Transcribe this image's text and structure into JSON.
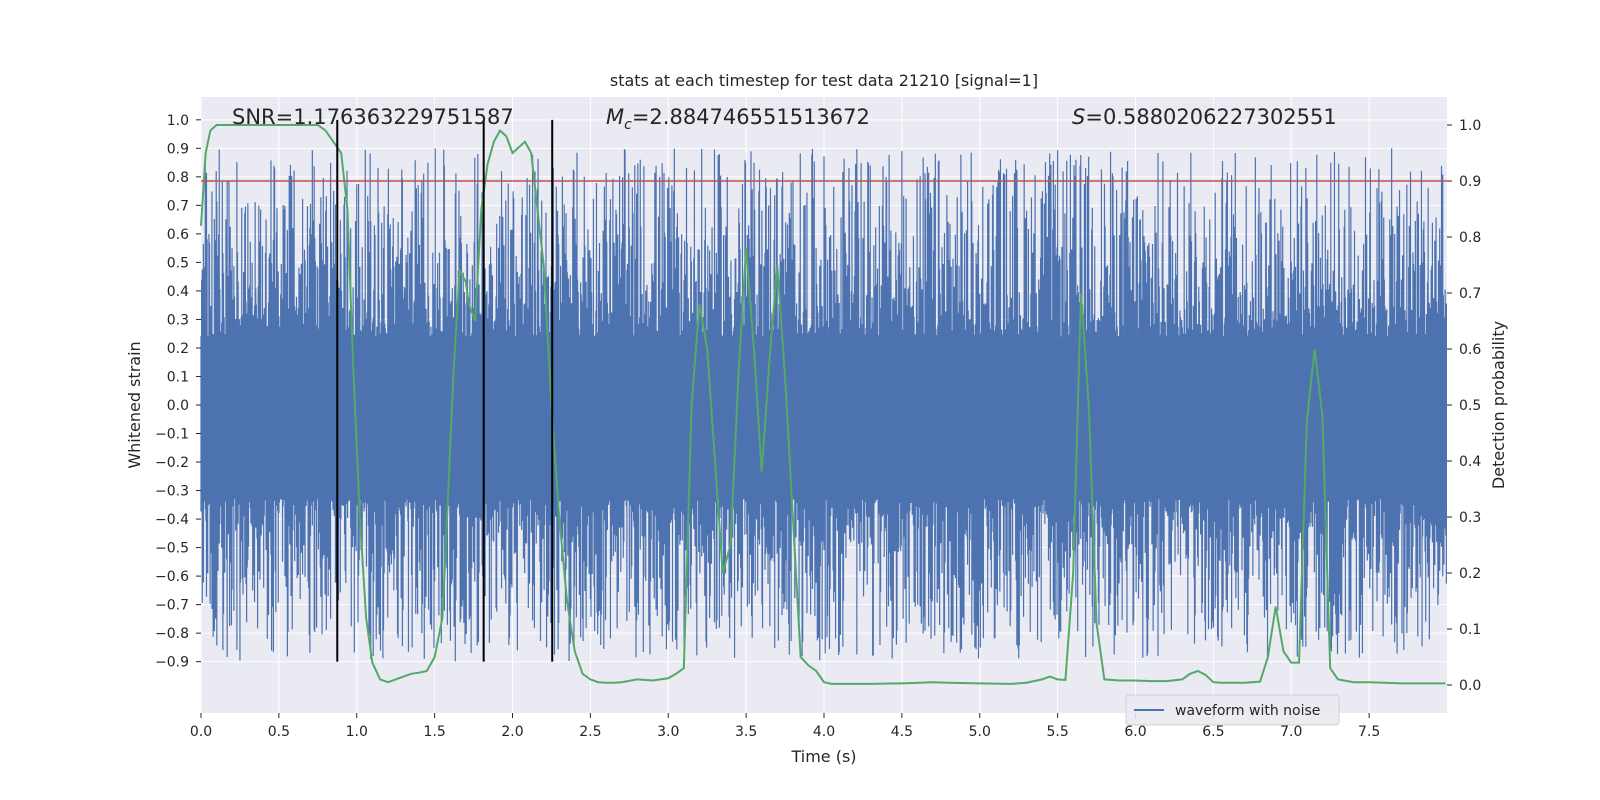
{
  "chart_data": {
    "type": "line",
    "title": "stats at each timestep for test data 21210 [signal=1]",
    "xlabel": "Time (s)",
    "ylabel_left": "Whitened strain",
    "ylabel_right": "Detection probability",
    "xlim": [
      0.0,
      8.0
    ],
    "ylim_left": [
      -1.08,
      1.08
    ],
    "ylim_right": [
      -0.05,
      1.05
    ],
    "x_ticks": [
      0.0,
      0.5,
      1.0,
      1.5,
      2.0,
      2.5,
      3.0,
      3.5,
      4.0,
      4.5,
      5.0,
      5.5,
      6.0,
      6.5,
      7.0,
      7.5
    ],
    "x_tick_labels": [
      "0.0",
      "0.5",
      "1.0",
      "1.5",
      "2.0",
      "2.5",
      "3.0",
      "3.5",
      "4.0",
      "4.5",
      "5.0",
      "5.5",
      "6.0",
      "6.5",
      "7.0",
      "7.5"
    ],
    "y_left_ticks": [
      -0.9,
      -0.8,
      -0.7,
      -0.6,
      -0.5,
      -0.4,
      -0.3,
      -0.2,
      -0.1,
      0.0,
      0.1,
      0.2,
      0.3,
      0.4,
      0.5,
      0.6,
      0.7,
      0.8,
      0.9,
      1.0
    ],
    "y_left_tick_labels": [
      "−0.9",
      "−0.8",
      "−0.7",
      "−0.6",
      "−0.5",
      "−0.4",
      "−0.3",
      "−0.2",
      "−0.1",
      "0.0",
      "0.1",
      "0.2",
      "0.3",
      "0.4",
      "0.5",
      "0.6",
      "0.7",
      "0.8",
      "0.9",
      "1.0"
    ],
    "y_right_ticks": [
      0.0,
      0.1,
      0.2,
      0.3,
      0.4,
      0.5,
      0.6,
      0.7,
      0.8,
      0.9,
      1.0
    ],
    "y_right_tick_labels": [
      "0.0",
      "0.1",
      "0.2",
      "0.3",
      "0.4",
      "0.5",
      "0.6",
      "0.7",
      "0.8",
      "0.9",
      "1.0"
    ],
    "grid": true,
    "legend": {
      "placement": "lower-right",
      "entries": [
        "waveform with noise"
      ]
    },
    "annotations": {
      "snr": "SNR=1.176363229751587",
      "mc_symbol": "M",
      "mc_sub": "c",
      "mc_value": "=2.884746551513672",
      "s_symbol": "S",
      "s_value": "=0.5880206227302551"
    },
    "series": [
      {
        "name": "waveform with noise",
        "axis": "left",
        "color": "#4c72b0",
        "kind": "noise",
        "band_low": -0.33,
        "band_high": 0.24,
        "extreme_low": -0.9,
        "extreme_high": 0.9,
        "samples": 2048
      },
      {
        "axis": "right",
        "color": "#55a868",
        "x": [
          0.0,
          0.03,
          0.06,
          0.1,
          0.2,
          0.3,
          0.4,
          0.5,
          0.6,
          0.7,
          0.75,
          0.8,
          0.85,
          0.9,
          0.94,
          0.98,
          1.02,
          1.06,
          1.1,
          1.15,
          1.2,
          1.25,
          1.3,
          1.35,
          1.4,
          1.45,
          1.5,
          1.55,
          1.58,
          1.62,
          1.66,
          1.7,
          1.72,
          1.76,
          1.8,
          1.84,
          1.88,
          1.92,
          1.96,
          2.0,
          2.04,
          2.08,
          2.12,
          2.16,
          2.2,
          2.25,
          2.3,
          2.35,
          2.4,
          2.45,
          2.5,
          2.55,
          2.6,
          2.65,
          2.7,
          2.8,
          2.9,
          3.0,
          3.05,
          3.1,
          3.15,
          3.2,
          3.25,
          3.3,
          3.35,
          3.4,
          3.45,
          3.5,
          3.55,
          3.6,
          3.65,
          3.7,
          3.75,
          3.8,
          3.85,
          3.9,
          3.95,
          4.0,
          4.05,
          4.1,
          4.2,
          4.3,
          4.5,
          4.7,
          4.8,
          5.0,
          5.2,
          5.3,
          5.4,
          5.45,
          5.5,
          5.55,
          5.6,
          5.65,
          5.7,
          5.75,
          5.8,
          5.9,
          6.0,
          6.1,
          6.2,
          6.3,
          6.35,
          6.4,
          6.45,
          6.5,
          6.55,
          6.6,
          6.7,
          6.8,
          6.85,
          6.9,
          6.95,
          7.0,
          7.05,
          7.1,
          7.15,
          7.2,
          7.25,
          7.3,
          7.4,
          7.5,
          7.6,
          7.7,
          7.8,
          7.99
        ],
        "values": [
          0.82,
          0.95,
          0.99,
          1.0,
          1.0,
          1.0,
          1.0,
          1.0,
          1.0,
          1.0,
          1.0,
          0.99,
          0.97,
          0.95,
          0.85,
          0.55,
          0.3,
          0.12,
          0.04,
          0.01,
          0.005,
          0.01,
          0.015,
          0.02,
          0.022,
          0.025,
          0.05,
          0.12,
          0.3,
          0.55,
          0.74,
          0.72,
          0.68,
          0.65,
          0.85,
          0.93,
          0.97,
          0.99,
          0.98,
          0.95,
          0.96,
          0.97,
          0.95,
          0.85,
          0.75,
          0.5,
          0.3,
          0.15,
          0.06,
          0.02,
          0.01,
          0.005,
          0.004,
          0.004,
          0.005,
          0.01,
          0.008,
          0.012,
          0.02,
          0.03,
          0.5,
          0.68,
          0.6,
          0.4,
          0.2,
          0.25,
          0.55,
          0.78,
          0.6,
          0.38,
          0.58,
          0.75,
          0.55,
          0.3,
          0.05,
          0.035,
          0.025,
          0.005,
          0.002,
          0.002,
          0.002,
          0.002,
          0.003,
          0.005,
          0.004,
          0.003,
          0.002,
          0.004,
          0.01,
          0.015,
          0.01,
          0.009,
          0.2,
          0.7,
          0.5,
          0.11,
          0.01,
          0.008,
          0.008,
          0.007,
          0.007,
          0.01,
          0.02,
          0.025,
          0.018,
          0.005,
          0.004,
          0.004,
          0.004,
          0.006,
          0.05,
          0.14,
          0.06,
          0.04,
          0.04,
          0.47,
          0.6,
          0.48,
          0.03,
          0.01,
          0.005,
          0.005,
          0.004,
          0.003,
          0.003,
          0.003
        ]
      }
    ],
    "threshold": {
      "axis": "right",
      "value": 0.9,
      "color": "#c44e52"
    },
    "vertical_lines": {
      "color": "#000000",
      "x": [
        0.875,
        1.815,
        2.255
      ],
      "y_top": 1.0,
      "y_bottom": -0.9
    }
  }
}
